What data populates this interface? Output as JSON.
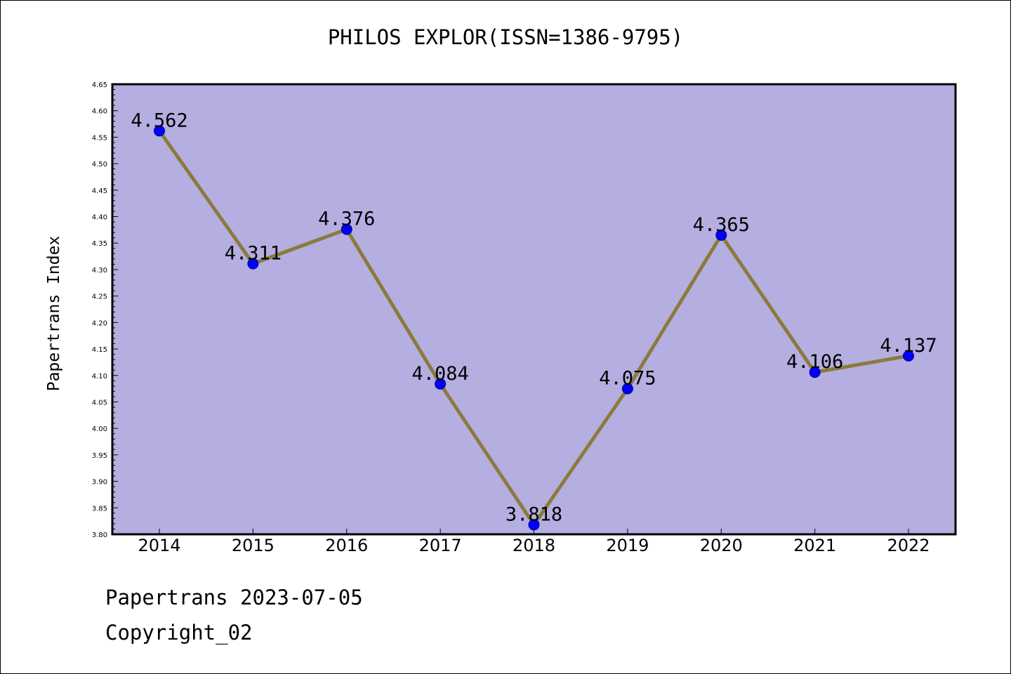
{
  "chart_data": {
    "type": "line",
    "title": "PHILOS EXPLOR(ISSN=1386-9795)",
    "xlabel": "",
    "ylabel": "Papertrans Index",
    "categories": [
      "2014",
      "2015",
      "2016",
      "2017",
      "2018",
      "2019",
      "2020",
      "2021",
      "2022"
    ],
    "series": [
      {
        "values": [
          4.562,
          4.311,
          4.376,
          4.084,
          3.818,
          4.075,
          4.365,
          4.106,
          4.137
        ],
        "data_labels": [
          "4.562",
          "4.311",
          "4.376",
          "4.084",
          "3.818",
          "4.075",
          "4.365",
          "4.106",
          "4.137"
        ],
        "line_color": "#8b7a3c",
        "marker_color": "#0000ff"
      }
    ],
    "ylim": [
      3.8,
      4.65
    ],
    "y_ticks": [
      "3.80",
      "3.85",
      "3.90",
      "3.95",
      "4.00",
      "4.05",
      "4.10",
      "4.15",
      "4.20",
      "4.25",
      "4.30",
      "4.35",
      "4.40",
      "4.45",
      "4.50",
      "4.55",
      "4.60",
      "4.65"
    ],
    "grid": false,
    "plot_background": "#b5aee0"
  },
  "footer": {
    "line1": "Papertrans 2023-07-05",
    "line2": "Copyright_02"
  }
}
